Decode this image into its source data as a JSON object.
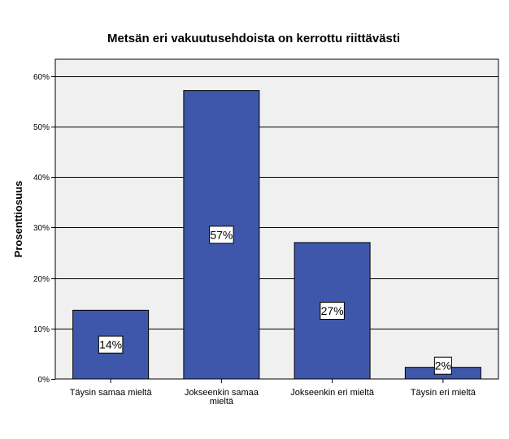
{
  "chart_data": {
    "type": "bar",
    "title": "Metsän eri vakuutusehdoista on kerrottu riittävästi",
    "xlabel": "",
    "ylabel": "Prosenttiosuus",
    "categories": [
      [
        "Täysin samaa mieltä"
      ],
      [
        "Jokseenkin samaa",
        "mieltä"
      ],
      [
        "Jokseenkin eri mieltä"
      ],
      [
        "Täysin eri mieltä"
      ]
    ],
    "values": [
      13.6,
      57.1,
      27.0,
      2.3
    ],
    "data_labels": [
      "14%",
      "57%",
      "27%",
      "2%"
    ],
    "y_ticks": [
      0,
      10,
      20,
      30,
      40,
      50,
      60
    ],
    "y_tick_labels": [
      "0%",
      "10%",
      "20%",
      "30%",
      "40%",
      "50%",
      "60%"
    ],
    "ylim": [
      0,
      63.3
    ],
    "grid": true,
    "colors": {
      "bar": "#3f57aa",
      "plot_background": "#f0f0f0",
      "grid": "#000000"
    }
  }
}
